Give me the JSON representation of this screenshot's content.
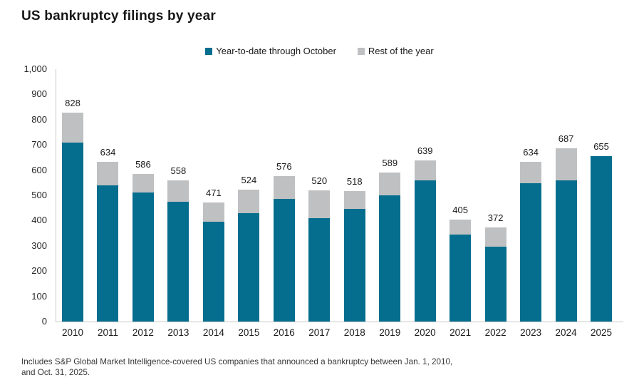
{
  "title": "US bankruptcy filings by year",
  "legend": {
    "items": [
      {
        "label": "Year-to-date through October",
        "color": "#056e8e"
      },
      {
        "label": "Rest of the year",
        "color": "#bfc0c2"
      }
    ]
  },
  "footnote": {
    "line1": "Includes S&P Global Market Intelligence-covered US companies that announced a bankruptcy between Jan. 1, 2010,",
    "line2": "and Oct. 31, 2025."
  },
  "colors": {
    "ytd_teal": "#056e8e",
    "rest_gray": "#bfc0c2",
    "axis_line": "#c8c8c8",
    "text": "#1a1a1a"
  },
  "chart_data": {
    "type": "bar",
    "stacked": true,
    "title": "US bankruptcy filings by year",
    "categories": [
      "2010",
      "2011",
      "2012",
      "2013",
      "2014",
      "2015",
      "2016",
      "2017",
      "2018",
      "2019",
      "2020",
      "2021",
      "2022",
      "2023",
      "2024",
      "2025"
    ],
    "series": [
      {
        "name": "Year-to-date through October",
        "color": "#056e8e",
        "values": [
          710,
          540,
          510,
          475,
          395,
          428,
          486,
          410,
          445,
          500,
          560,
          346,
          296,
          547,
          558,
          655
        ]
      },
      {
        "name": "Rest of the year",
        "color": "#bfc0c2",
        "values": [
          118,
          94,
          76,
          83,
          76,
          96,
          90,
          110,
          73,
          89,
          79,
          59,
          76,
          87,
          129,
          0
        ]
      }
    ],
    "totals": [
      828,
      634,
      586,
      558,
      471,
      524,
      576,
      520,
      518,
      589,
      639,
      405,
      372,
      634,
      687,
      655
    ],
    "total_labels_shown": true,
    "xlabel": "",
    "ylabel": "",
    "ylim": [
      0,
      1000
    ],
    "ytick_step": 100,
    "ytick_labels": [
      "0",
      "100",
      "200",
      "300",
      "400",
      "500",
      "600",
      "700",
      "800",
      "900",
      "1,000"
    ],
    "legend_position": "top-center",
    "grid": false
  }
}
